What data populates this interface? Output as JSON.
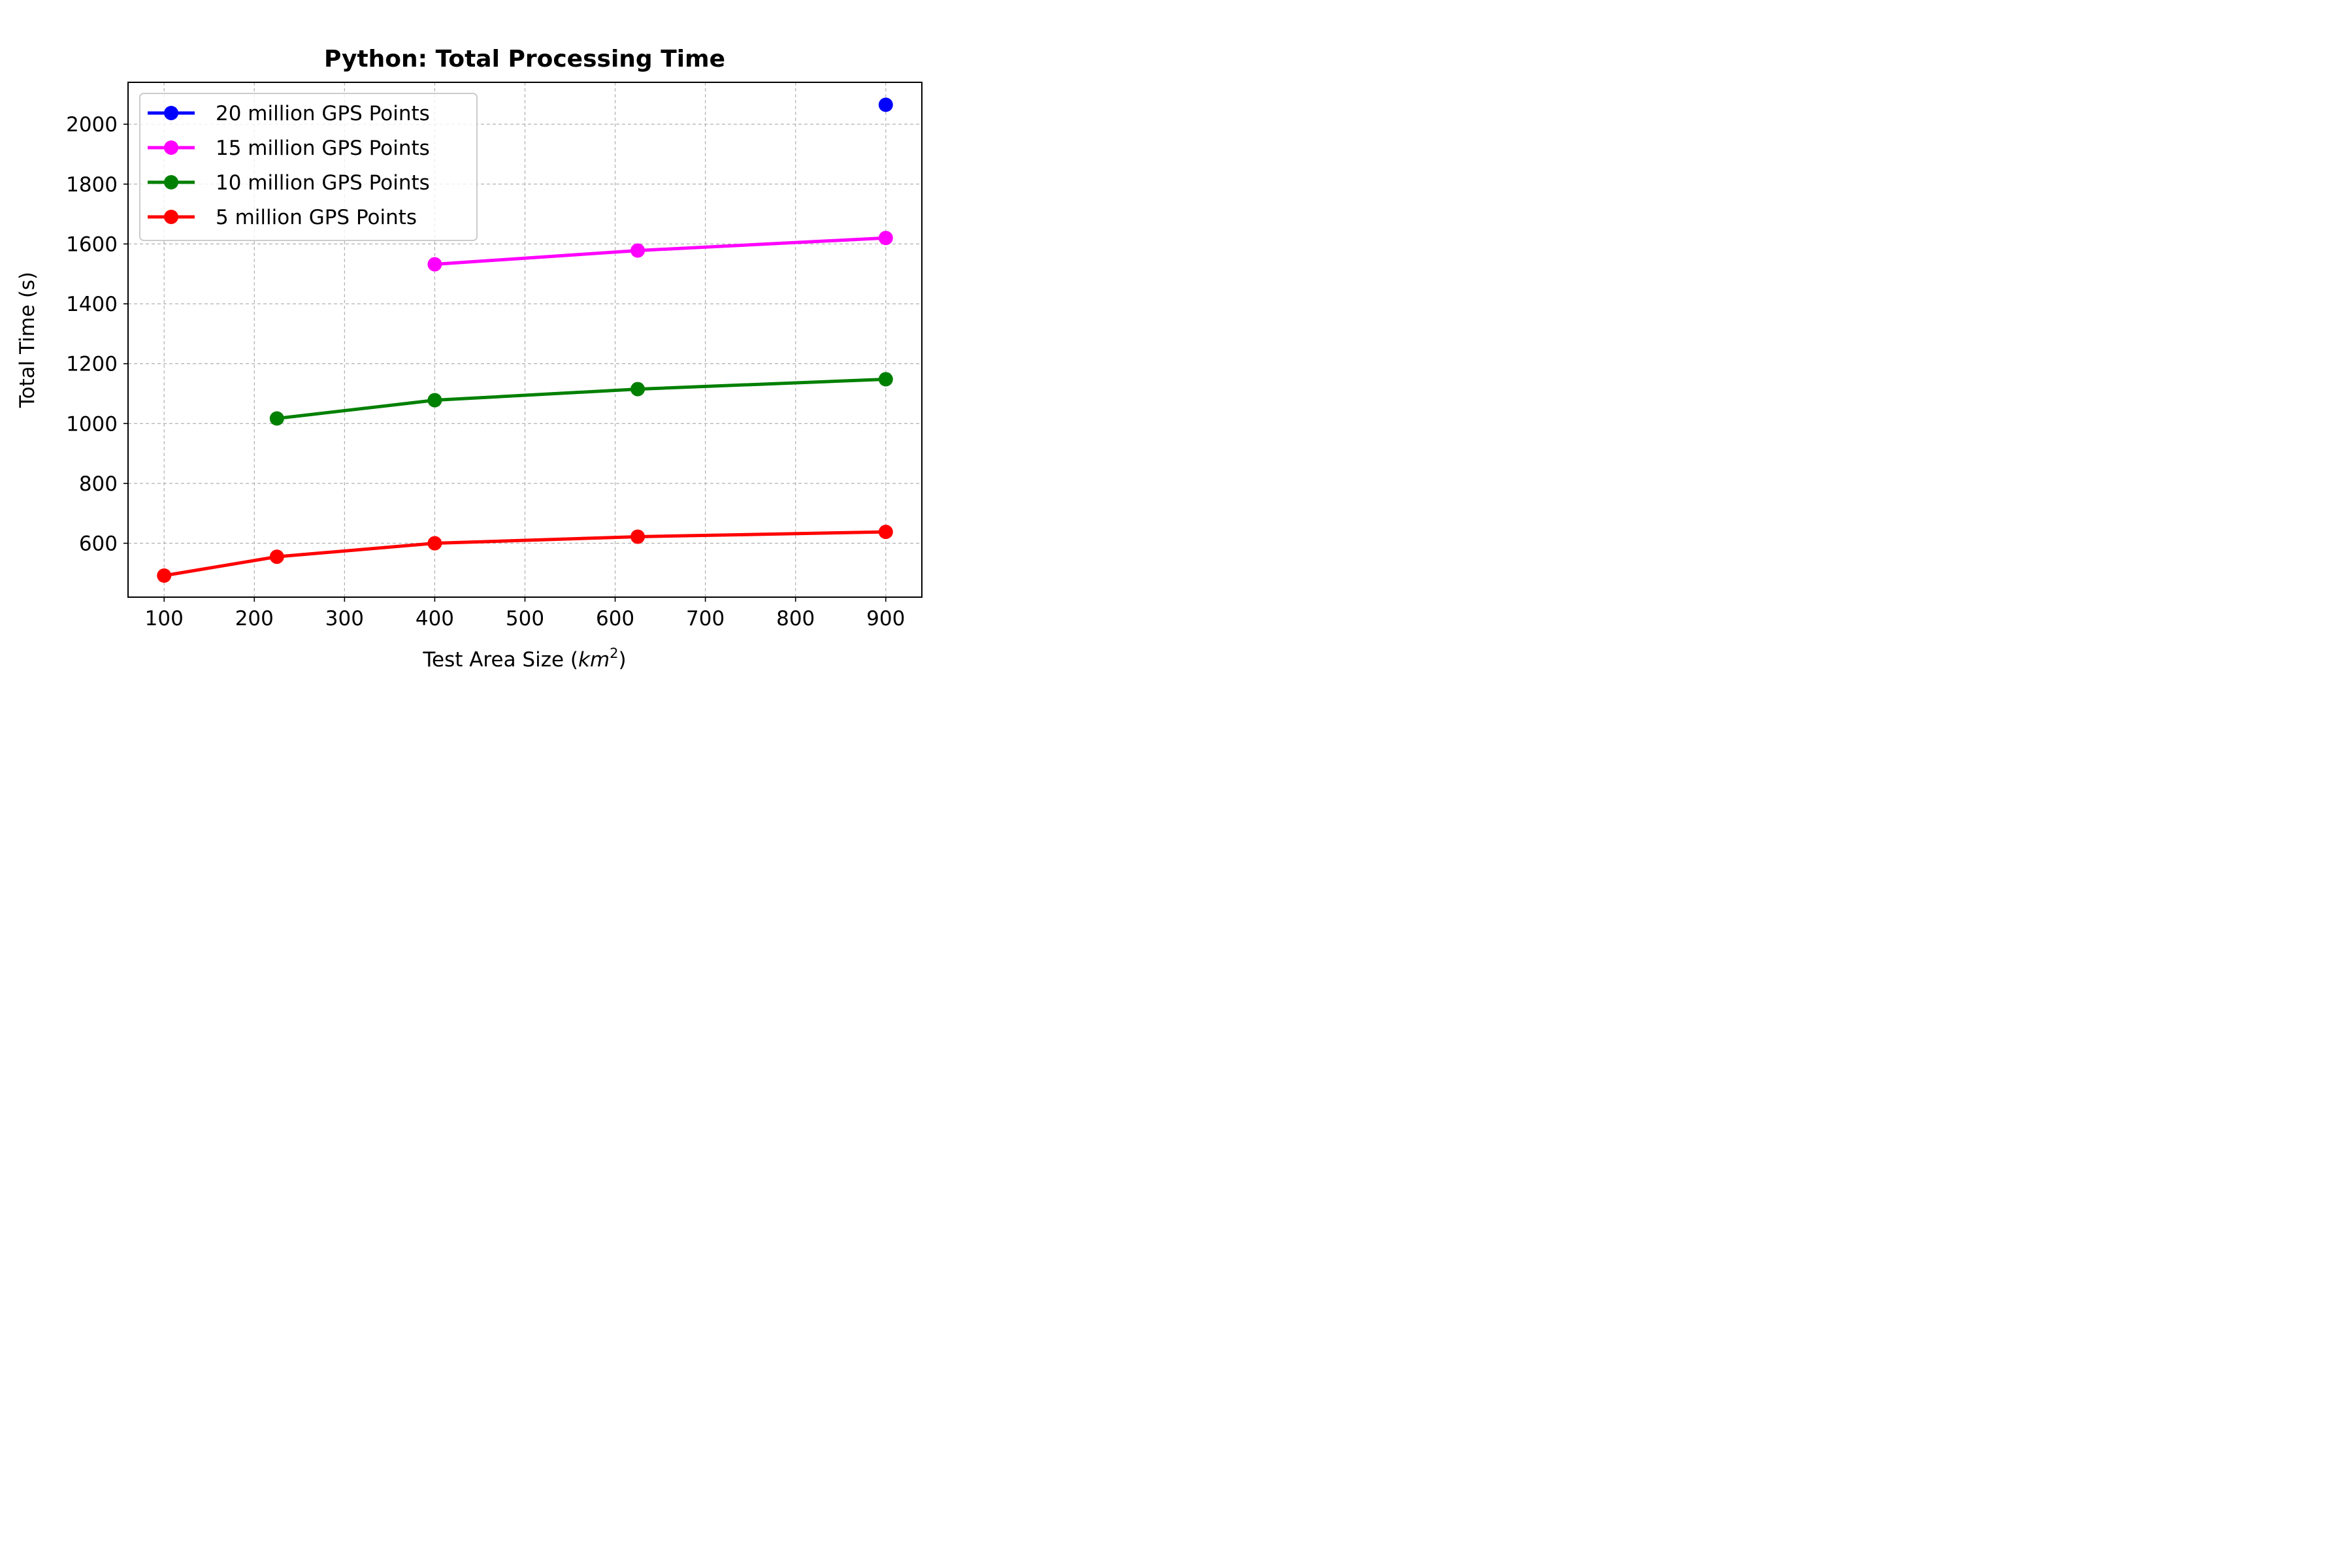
{
  "chart_data": {
    "type": "line",
    "title": "Python: Total Processing Time",
    "xlabel": "Test Area Size (",
    "xlabel_math": "km",
    "xlabel_sup": "2",
    "xlabel_close": ")",
    "ylabel": "Total Time (s)",
    "xlim": [
      60,
      940
    ],
    "ylim": [
      420,
      2140
    ],
    "xticks": [
      100,
      200,
      300,
      400,
      500,
      600,
      700,
      800,
      900
    ],
    "yticks": [
      600,
      800,
      1000,
      1200,
      1400,
      1600,
      1800,
      2000
    ],
    "grid": true,
    "legend_position": "top-left",
    "series": [
      {
        "name": "20 million GPS Points",
        "color": "#0000ff",
        "x": [
          900
        ],
        "y": [
          2065
        ]
      },
      {
        "name": "15 million GPS Points",
        "color": "#ff00ff",
        "x": [
          400,
          625,
          900
        ],
        "y": [
          1532,
          1578,
          1620
        ]
      },
      {
        "name": "10 million GPS Points",
        "color": "#008000",
        "x": [
          225,
          400,
          625,
          900
        ],
        "y": [
          1017,
          1078,
          1115,
          1148
        ]
      },
      {
        "name": "5 million GPS Points",
        "color": "#ff0000",
        "x": [
          100,
          225,
          400,
          625,
          900
        ],
        "y": [
          492,
          555,
          600,
          622,
          638
        ]
      }
    ]
  }
}
